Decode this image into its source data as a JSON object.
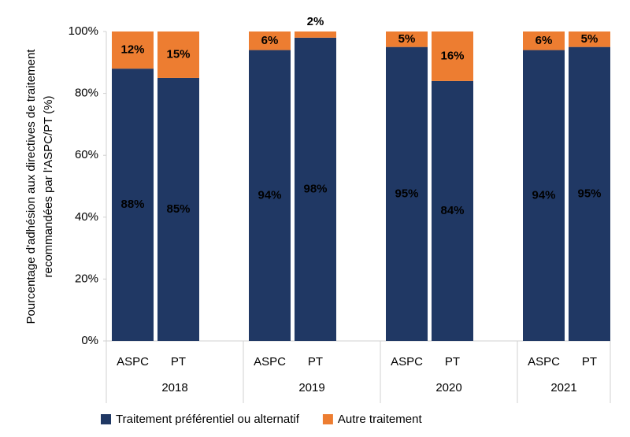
{
  "chart_data": {
    "type": "stacked_bar",
    "y_label": [
      "Pourcentage d'adhésion aux directives de traitement",
      "recommandées par l'ASPC/PT (%)"
    ],
    "categories": [
      "ASPC",
      "PT",
      "ASPC",
      "PT",
      "ASPC",
      "PT",
      "ASPC",
      "PT"
    ],
    "group_labels": [
      "2018",
      "2019",
      "2020",
      "2021"
    ],
    "series": [
      {
        "name": "Traitement préférentiel ou alternatif",
        "color": "#203864",
        "values": [
          88,
          85,
          94,
          98,
          95,
          84,
          94,
          95
        ],
        "value_labels": [
          "88%",
          "85%",
          "94%",
          "98%",
          "95%",
          "84%",
          "94%",
          "95%"
        ]
      },
      {
        "name": "Autre traitement",
        "color": "#ed7d31",
        "values": [
          12,
          15,
          6,
          2,
          5,
          16,
          6,
          5
        ],
        "value_labels": [
          "12%",
          "15%",
          "6%",
          "2%",
          "5%",
          "16%",
          "6%",
          "5%"
        ]
      }
    ],
    "ylim": [
      0,
      100
    ],
    "yticks": [
      {
        "value": 0,
        "label": "0%"
      },
      {
        "value": 20,
        "label": "20%"
      },
      {
        "value": 40,
        "label": "40%"
      },
      {
        "value": 60,
        "label": "60%"
      },
      {
        "value": 80,
        "label": "80%"
      },
      {
        "value": 100,
        "label": "100%"
      }
    ],
    "legend": "bottom"
  }
}
